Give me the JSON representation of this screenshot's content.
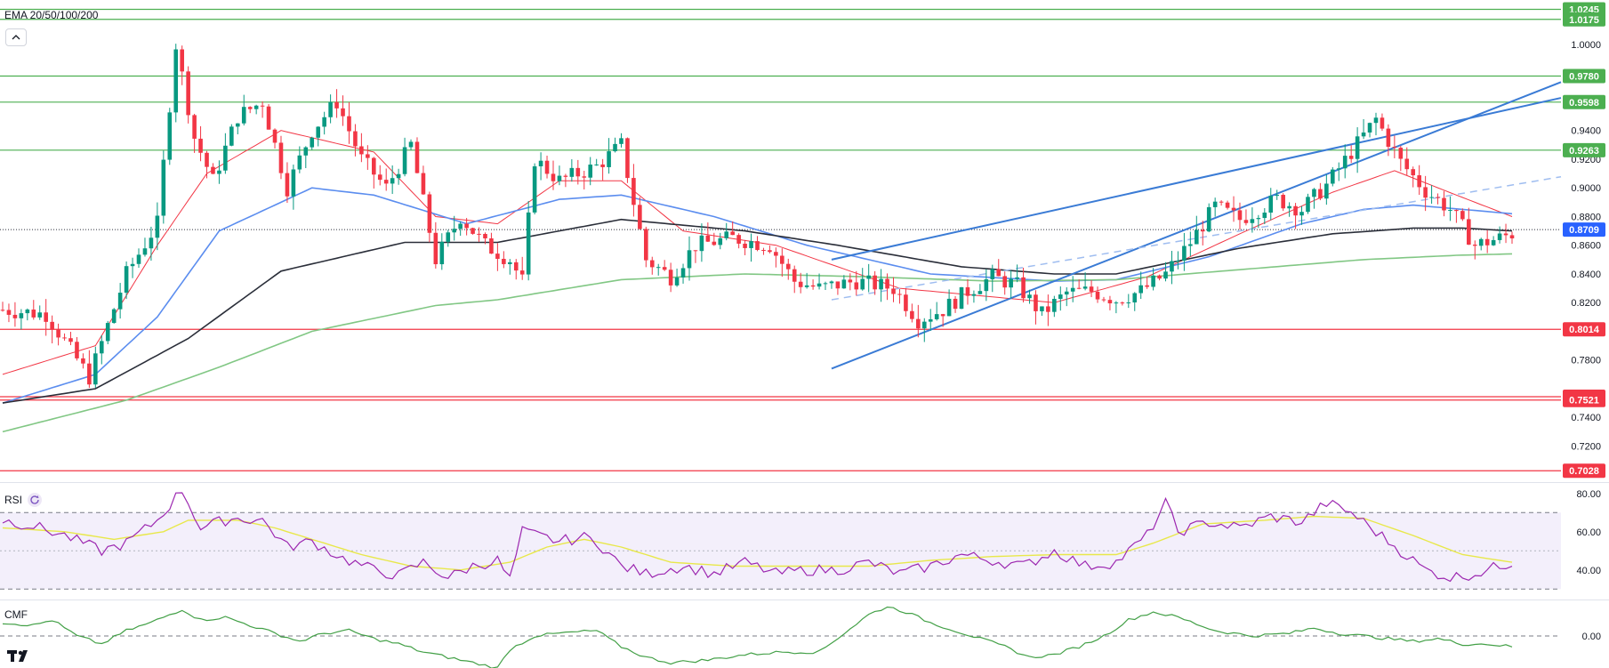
{
  "indicator_label": "EMA 20/50/100/200",
  "rsi_label": "RSI",
  "cmf_label": "CMF",
  "colors": {
    "up": "#089981",
    "down": "#f23645",
    "ema20": "#f23645",
    "ema50": "#5b8def",
    "ema100": "#2a2e39",
    "ema200": "#81c784",
    "resistance": "#4caf50",
    "support": "#f23645",
    "channel": "#3a7bd5",
    "rsi": "#9c27b0",
    "rsi_ma": "#e8e84a",
    "cmf": "#43a047",
    "current": "#2962ff"
  },
  "chart_data": [
    {
      "type": "candlestick",
      "title": "EMA 20/50/100/200",
      "y_ticks": [
        "1.0000",
        "0.9400",
        "0.9200",
        "0.9000",
        "0.8800",
        "0.8600",
        "0.8400",
        "0.8200",
        "0.7800",
        "0.7400",
        "0.7200"
      ],
      "ylim": [
        0.6955,
        1.031
      ],
      "horizontal_levels": [
        {
          "value": 1.0245,
          "label": "1.0245",
          "kind": "resistance"
        },
        {
          "value": 1.0175,
          "label": "1.0175",
          "kind": "resistance"
        },
        {
          "value": 0.978,
          "label": "0.9780",
          "kind": "resistance"
        },
        {
          "value": 0.9598,
          "label": "0.9598",
          "kind": "resistance"
        },
        {
          "value": 0.9263,
          "label": "0.9263",
          "kind": "resistance"
        },
        {
          "value": 0.8014,
          "label": "0.8014",
          "kind": "support"
        },
        {
          "value": 0.7544,
          "label": "0.7544",
          "kind": "support"
        },
        {
          "value": 0.7521,
          "label": "0.7521",
          "kind": "support"
        },
        {
          "value": 0.7028,
          "label": "0.7028",
          "kind": "support"
        }
      ],
      "current_price": {
        "value": 0.8709,
        "label": "0.8709"
      },
      "anchors": [
        [
          0,
          0.815
        ],
        [
          7,
          0.812
        ],
        [
          14,
          0.768
        ],
        [
          20,
          0.84
        ],
        [
          25,
          0.875
        ],
        [
          28,
          1.0
        ],
        [
          31,
          0.935
        ],
        [
          34,
          0.905
        ],
        [
          38,
          0.95
        ],
        [
          42,
          0.96
        ],
        [
          46,
          0.9
        ],
        [
          50,
          0.94
        ],
        [
          54,
          0.96
        ],
        [
          58,
          0.92
        ],
        [
          62,
          0.9
        ],
        [
          66,
          0.93
        ],
        [
          70,
          0.85
        ],
        [
          74,
          0.88
        ],
        [
          78,
          0.86
        ],
        [
          82,
          0.85
        ],
        [
          84,
          0.835
        ],
        [
          86,
          0.92
        ],
        [
          90,
          0.905
        ],
        [
          96,
          0.915
        ],
        [
          100,
          0.93
        ],
        [
          104,
          0.85
        ],
        [
          108,
          0.838
        ],
        [
          112,
          0.86
        ],
        [
          118,
          0.865
        ],
        [
          124,
          0.86
        ],
        [
          128,
          0.835
        ],
        [
          132,
          0.83
        ],
        [
          138,
          0.835
        ],
        [
          144,
          0.83
        ],
        [
          148,
          0.808
        ],
        [
          152,
          0.815
        ],
        [
          156,
          0.828
        ],
        [
          160,
          0.838
        ],
        [
          164,
          0.832
        ],
        [
          168,
          0.812
        ],
        [
          172,
          0.827
        ],
        [
          176,
          0.828
        ],
        [
          180,
          0.822
        ],
        [
          184,
          0.828
        ],
        [
          188,
          0.84
        ],
        [
          192,
          0.862
        ],
        [
          196,
          0.887
        ],
        [
          200,
          0.878
        ],
        [
          206,
          0.892
        ],
        [
          210,
          0.885
        ],
        [
          214,
          0.902
        ],
        [
          218,
          0.925
        ],
        [
          222,
          0.948
        ],
        [
          226,
          0.918
        ],
        [
          230,
          0.898
        ],
        [
          234,
          0.885
        ],
        [
          238,
          0.86
        ],
        [
          242,
          0.865
        ],
        [
          244,
          0.868
        ]
      ],
      "ema_series": [
        {
          "name": "EMA20",
          "anchors": [
            [
              0,
              0.77
            ],
            [
              15,
              0.79
            ],
            [
              25,
              0.86
            ],
            [
              33,
              0.91
            ],
            [
              45,
              0.94
            ],
            [
              60,
              0.925
            ],
            [
              70,
              0.88
            ],
            [
              80,
              0.875
            ],
            [
              90,
              0.905
            ],
            [
              100,
              0.905
            ],
            [
              110,
              0.87
            ],
            [
              125,
              0.86
            ],
            [
              145,
              0.83
            ],
            [
              170,
              0.82
            ],
            [
              185,
              0.838
            ],
            [
              200,
              0.868
            ],
            [
              215,
              0.897
            ],
            [
              225,
              0.912
            ],
            [
              235,
              0.895
            ],
            [
              244,
              0.88
            ]
          ]
        },
        {
          "name": "EMA50",
          "anchors": [
            [
              0,
              0.75
            ],
            [
              15,
              0.77
            ],
            [
              25,
              0.81
            ],
            [
              35,
              0.87
            ],
            [
              50,
              0.9
            ],
            [
              60,
              0.895
            ],
            [
              75,
              0.875
            ],
            [
              90,
              0.892
            ],
            [
              100,
              0.895
            ],
            [
              115,
              0.88
            ],
            [
              130,
              0.86
            ],
            [
              150,
              0.84
            ],
            [
              170,
              0.835
            ],
            [
              180,
              0.836
            ],
            [
              195,
              0.852
            ],
            [
              210,
              0.875
            ],
            [
              220,
              0.885
            ],
            [
              228,
              0.888
            ],
            [
              236,
              0.885
            ],
            [
              244,
              0.882
            ]
          ]
        },
        {
          "name": "EMA100",
          "anchors": [
            [
              0,
              0.75
            ],
            [
              15,
              0.76
            ],
            [
              30,
              0.795
            ],
            [
              45,
              0.842
            ],
            [
              65,
              0.862
            ],
            [
              80,
              0.862
            ],
            [
              100,
              0.878
            ],
            [
              120,
              0.87
            ],
            [
              135,
              0.86
            ],
            [
              155,
              0.845
            ],
            [
              170,
              0.84
            ],
            [
              180,
              0.84
            ],
            [
              200,
              0.858
            ],
            [
              215,
              0.868
            ],
            [
              228,
              0.872
            ],
            [
              236,
              0.872
            ],
            [
              244,
              0.87
            ]
          ]
        },
        {
          "name": "EMA200",
          "anchors": [
            [
              0,
              0.73
            ],
            [
              20,
              0.752
            ],
            [
              35,
              0.775
            ],
            [
              50,
              0.8
            ],
            [
              70,
              0.818
            ],
            [
              80,
              0.822
            ],
            [
              100,
              0.836
            ],
            [
              120,
              0.84
            ],
            [
              140,
              0.838
            ],
            [
              160,
              0.835
            ],
            [
              180,
              0.836
            ],
            [
              200,
              0.843
            ],
            [
              220,
              0.85
            ],
            [
              235,
              0.853
            ],
            [
              244,
              0.854
            ]
          ]
        }
      ],
      "trendlines": [
        {
          "style": "solid",
          "from": [
            134,
            0.774
          ],
          "to": [
            237,
            0.9485
          ]
        },
        {
          "style": "solid",
          "from": [
            134,
            0.85
          ],
          "to": [
            237,
            0.9485
          ]
        },
        {
          "style": "dashed",
          "from": [
            134,
            0.822
          ],
          "to": [
            244,
            0.902
          ]
        }
      ]
    },
    {
      "type": "line",
      "title": "RSI",
      "y_ticks": [
        "80.00",
        "60.00",
        "40.00"
      ],
      "bands": [
        30,
        70
      ],
      "ylim": [
        25,
        85
      ],
      "rsi_anchors": [
        [
          0,
          66
        ],
        [
          5,
          63
        ],
        [
          10,
          58
        ],
        [
          16,
          50
        ],
        [
          20,
          54
        ],
        [
          25,
          66
        ],
        [
          29,
          82
        ],
        [
          32,
          62
        ],
        [
          37,
          67
        ],
        [
          42,
          66
        ],
        [
          46,
          52
        ],
        [
          50,
          55
        ],
        [
          55,
          46
        ],
        [
          60,
          40
        ],
        [
          64,
          37
        ],
        [
          68,
          44
        ],
        [
          72,
          36
        ],
        [
          76,
          42
        ],
        [
          80,
          45
        ],
        [
          82,
          35
        ],
        [
          84,
          60
        ],
        [
          90,
          55
        ],
        [
          94,
          57
        ],
        [
          96,
          55
        ],
        [
          100,
          42
        ],
        [
          104,
          38
        ],
        [
          110,
          42
        ],
        [
          115,
          38
        ],
        [
          120,
          44
        ],
        [
          125,
          38
        ],
        [
          130,
          40
        ],
        [
          135,
          40
        ],
        [
          140,
          44
        ],
        [
          145,
          38
        ],
        [
          150,
          42
        ],
        [
          155,
          48
        ],
        [
          160,
          45
        ],
        [
          165,
          42
        ],
        [
          170,
          50
        ],
        [
          175,
          42
        ],
        [
          180,
          44
        ],
        [
          185,
          58
        ],
        [
          188,
          75
        ],
        [
          190,
          60
        ],
        [
          195,
          65
        ],
        [
          200,
          62
        ],
        [
          205,
          68
        ],
        [
          210,
          65
        ],
        [
          214,
          75
        ],
        [
          218,
          70
        ],
        [
          222,
          60
        ],
        [
          226,
          50
        ],
        [
          230,
          40
        ],
        [
          234,
          36
        ],
        [
          238,
          38
        ],
        [
          244,
          44
        ]
      ],
      "rsi_ma_anchors": [
        [
          0,
          62
        ],
        [
          10,
          60
        ],
        [
          18,
          56
        ],
        [
          26,
          60
        ],
        [
          30,
          66
        ],
        [
          38,
          66
        ],
        [
          44,
          62
        ],
        [
          50,
          56
        ],
        [
          58,
          48
        ],
        [
          66,
          42
        ],
        [
          74,
          40
        ],
        [
          82,
          44
        ],
        [
          88,
          52
        ],
        [
          94,
          56
        ],
        [
          100,
          52
        ],
        [
          108,
          44
        ],
        [
          118,
          42
        ],
        [
          128,
          42
        ],
        [
          140,
          42
        ],
        [
          150,
          45
        ],
        [
          160,
          47
        ],
        [
          170,
          48
        ],
        [
          180,
          48
        ],
        [
          186,
          54
        ],
        [
          194,
          64
        ],
        [
          204,
          66
        ],
        [
          212,
          68
        ],
        [
          220,
          67
        ],
        [
          228,
          58
        ],
        [
          236,
          48
        ],
        [
          244,
          44
        ]
      ]
    },
    {
      "type": "line",
      "title": "CMF",
      "y_ticks": [
        "0.00"
      ],
      "ylim": [
        -0.12,
        0.13
      ],
      "cmf_anchors": [
        [
          0,
          0.05
        ],
        [
          5,
          0.04
        ],
        [
          8,
          0.06
        ],
        [
          12,
          0.0
        ],
        [
          16,
          -0.03
        ],
        [
          20,
          0.02
        ],
        [
          24,
          0.05
        ],
        [
          29,
          0.1
        ],
        [
          32,
          0.06
        ],
        [
          36,
          0.07
        ],
        [
          40,
          0.04
        ],
        [
          44,
          0.01
        ],
        [
          48,
          -0.02
        ],
        [
          52,
          0.01
        ],
        [
          56,
          0.02
        ],
        [
          60,
          -0.01
        ],
        [
          64,
          -0.03
        ],
        [
          68,
          -0.06
        ],
        [
          72,
          -0.08
        ],
        [
          76,
          -0.1
        ],
        [
          80,
          -0.12
        ],
        [
          82,
          -0.05
        ],
        [
          86,
          0.0
        ],
        [
          90,
          0.01
        ],
        [
          96,
          0.02
        ],
        [
          100,
          -0.04
        ],
        [
          104,
          -0.08
        ],
        [
          108,
          -0.1
        ],
        [
          114,
          -0.09
        ],
        [
          120,
          -0.07
        ],
        [
          126,
          -0.06
        ],
        [
          132,
          -0.06
        ],
        [
          136,
          0.01
        ],
        [
          140,
          0.08
        ],
        [
          143,
          0.11
        ],
        [
          146,
          0.09
        ],
        [
          150,
          0.05
        ],
        [
          154,
          0.02
        ],
        [
          158,
          -0.01
        ],
        [
          162,
          -0.04
        ],
        [
          166,
          -0.08
        ],
        [
          170,
          -0.07
        ],
        [
          174,
          -0.04
        ],
        [
          178,
          0.0
        ],
        [
          182,
          0.06
        ],
        [
          186,
          0.09
        ],
        [
          190,
          0.07
        ],
        [
          196,
          0.02
        ],
        [
          202,
          0.0
        ],
        [
          208,
          0.01
        ],
        [
          212,
          0.03
        ],
        [
          216,
          0.01
        ],
        [
          220,
          0.0
        ],
        [
          224,
          -0.01
        ],
        [
          228,
          -0.02
        ],
        [
          232,
          -0.01
        ],
        [
          236,
          -0.03
        ],
        [
          240,
          -0.03
        ],
        [
          244,
          -0.04
        ]
      ]
    }
  ]
}
